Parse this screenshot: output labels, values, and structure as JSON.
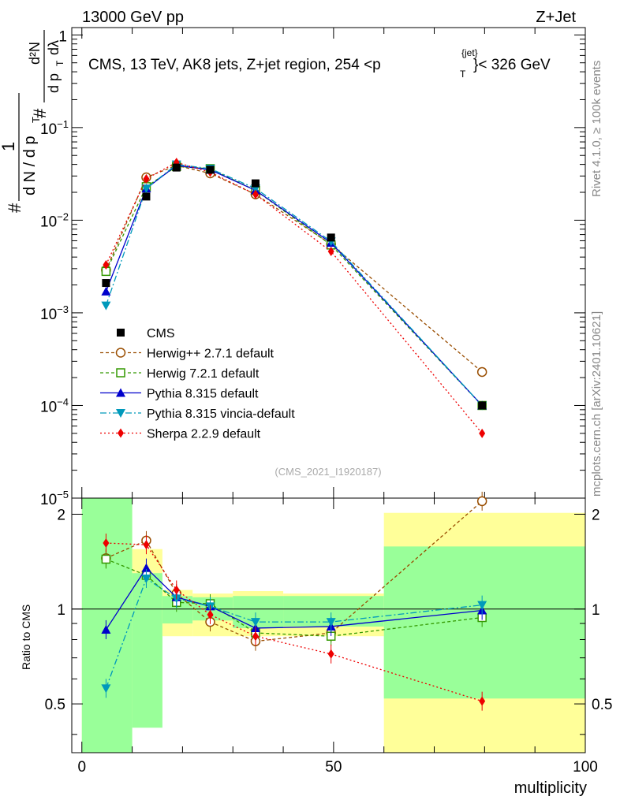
{
  "header": {
    "left": "13000 GeV pp",
    "right": "Z+Jet"
  },
  "side_labels": {
    "rivet": "Rivet 4.1.0, ≥ 100k events",
    "mcplots": "mcplots.cern.ch [arXiv:2401.10621]"
  },
  "chart_data": {
    "type": "line",
    "title": "CMS, 13 TeV, AK8 jets, Z+jet region, 254 <p_T^{jet}< 326 GeV",
    "title_main": "CMS, 13 TeV, AK8 jets, Z+jet region, 254 <p",
    "title_sup": "{jet}",
    "title_sub": "T",
    "title_end": "}< 326 GeV",
    "analysis_id": "(CMS_2021_I1920187)",
    "xlabel": "multiplicity",
    "ylabel": "# 1/(dN / d p_T) # d²N/(d p_T dλ)",
    "ylabel_parts": {
      "hash": "#",
      "one": "1",
      "dn_dpt": "d N / d p",
      "t": "T",
      "d2n": "d²N",
      "dpt_dl": "d p",
      "lambda": "dλ"
    },
    "xlim": [
      -2,
      100
    ],
    "ylim": [
      1e-05,
      1.2
    ],
    "ratio_ylabel": "Ratio to CMS",
    "ratio_ylim": [
      0.35,
      2.25
    ],
    "x_ticks": [
      "0",
      "50",
      "100"
    ],
    "y_ticks": [
      "1",
      "10^-1",
      "10^-2",
      "10^-3",
      "10^-4",
      "10^-5"
    ],
    "ratio_ticks": [
      "0.5",
      "1",
      "2"
    ],
    "data": {
      "name": "CMS",
      "x": [
        4.8,
        12.8,
        18.8,
        25.5,
        34.5,
        49.5,
        79.5
      ],
      "y": [
        0.0021,
        0.018,
        0.037,
        0.035,
        0.025,
        0.0065,
        0.0001
      ]
    },
    "series": [
      {
        "name": "Herwig++ 2.7.1 default",
        "color": "#994d00",
        "marker": "open-circle",
        "dash": "4,3",
        "x": [
          4.8,
          12.8,
          18.8,
          25.5,
          34.5,
          49.5,
          79.5
        ],
        "y": [
          0.0029,
          0.029,
          0.039,
          0.032,
          0.019,
          0.0055,
          0.00023
        ],
        "ratio": [
          1.45,
          1.65,
          1.12,
          0.91,
          0.79,
          0.84,
          2.2
        ]
      },
      {
        "name": "Herwig 7.2.1 default",
        "color": "#339900",
        "marker": "open-square",
        "dash": "4,3",
        "x": [
          4.8,
          12.8,
          18.8,
          25.5,
          34.5,
          49.5,
          79.5
        ],
        "y": [
          0.0028,
          0.023,
          0.038,
          0.036,
          0.021,
          0.0054,
          0.0001
        ],
        "ratio": [
          1.44,
          1.28,
          1.05,
          1.04,
          0.84,
          0.82,
          0.94
        ]
      },
      {
        "name": "Pythia 8.315 default",
        "color": "#0000cc",
        "marker": "triangle-up",
        "dash": "",
        "x": [
          4.8,
          12.8,
          18.8,
          25.5,
          34.5,
          49.5,
          79.5
        ],
        "y": [
          0.0017,
          0.022,
          0.039,
          0.035,
          0.021,
          0.0057,
          0.0001
        ],
        "ratio": [
          0.86,
          1.35,
          1.09,
          1.02,
          0.87,
          0.88,
          0.99
        ]
      },
      {
        "name": "Pythia 8.315 vincia-default",
        "color": "#0099bb",
        "marker": "triangle-down",
        "dash": "8,3,2,3",
        "x": [
          4.8,
          12.8,
          18.8,
          25.5,
          34.5,
          49.5,
          79.5
        ],
        "y": [
          0.0012,
          0.022,
          0.04,
          0.036,
          0.022,
          0.0059,
          0.0001
        ],
        "ratio": [
          0.56,
          1.25,
          1.08,
          1.02,
          0.91,
          0.91,
          1.03
        ]
      },
      {
        "name": "Sherpa 2.2.9 default",
        "color": "#ee0000",
        "marker": "diamond",
        "dash": "2,3",
        "x": [
          4.8,
          12.8,
          18.8,
          25.5,
          34.5,
          49.5,
          79.5
        ],
        "y": [
          0.0033,
          0.028,
          0.042,
          0.033,
          0.019,
          0.0046,
          5e-05
        ],
        "ratio": [
          1.62,
          1.6,
          1.15,
          0.96,
          0.82,
          0.72,
          0.51
        ]
      }
    ],
    "ratio_bands": {
      "bins": [
        [
          0,
          10
        ],
        [
          10,
          16
        ],
        [
          16,
          22
        ],
        [
          22,
          30
        ],
        [
          30,
          40
        ],
        [
          40,
          60
        ],
        [
          60,
          100
        ]
      ],
      "green_low": [
        0.35,
        0.42,
        0.9,
        0.92,
        0.87,
        0.88,
        0.52
      ],
      "green_high": [
        2.28,
        1.3,
        1.1,
        1.09,
        1.1,
        1.1,
        1.58
      ],
      "yellow_low": [
        0.35,
        0.45,
        0.82,
        0.82,
        0.82,
        0.82,
        0.35
      ],
      "yellow_high": [
        2.28,
        1.55,
        1.15,
        1.12,
        1.14,
        1.12,
        2.02
      ]
    },
    "legend_position": "lower-left"
  }
}
